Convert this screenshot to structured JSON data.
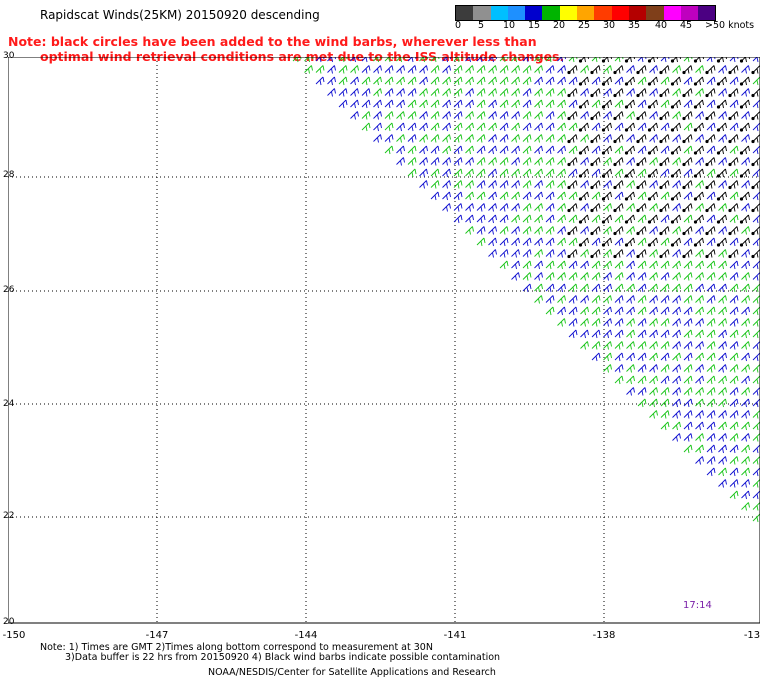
{
  "title": "Rapidscat Winds(25KM) 20150920 descending",
  "note_line1": "Note: black circles have been added to the wind barbs, wherever less than",
  "note_line2": "optimal wind retrieval conditions are met due to the ISS altitude changes.",
  "legend": {
    "colors": [
      "#3c3c3c",
      "#909090",
      "#00bfff",
      "#1e90ff",
      "#0000cd",
      "#00b400",
      "#ffff00",
      "#ffa500",
      "#ff3c00",
      "#ff0000",
      "#b40000",
      "#7f3f1a",
      "#ff00ff",
      "#bf00bf",
      "#4b0082"
    ],
    "labels": [
      "0",
      "5",
      "10",
      "15",
      "20",
      "25",
      "30",
      "35",
      "40",
      "45",
      ">50 knots"
    ]
  },
  "axes": {
    "x_ticks": [
      "-150",
      "-147",
      "-144",
      "-141",
      "-138",
      "-13"
    ],
    "y_ticks": [
      "30",
      "28",
      "26",
      "24",
      "22",
      "20"
    ]
  },
  "timestamp": "17:14",
  "footnote_line1": "Note: 1) Times are GMT 2)Times along bottom correspond to measurement at 30N",
  "footnote_line2": "3)Data buffer is 22 hrs from 20150920 4) Black wind barbs indicate possible contamination",
  "credit": "NOAA/NESDIS/Center for Satellite Applications and Research",
  "barb_colors": {
    "blue": "#1010d0",
    "green": "#18c418",
    "flagged": "#000000"
  }
}
